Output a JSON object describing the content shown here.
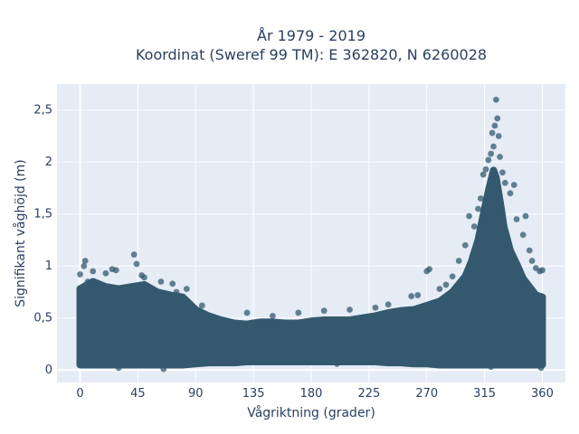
{
  "chart_data": {
    "type": "scatter",
    "title_line1": "År 1979 - 2019",
    "title_line2": "Koordinat (Sweref 99 TM): E 362820, N 6260028",
    "xlabel": "Vågriktning (grader)",
    "ylabel": "Signifikant våghöjd (m)",
    "xlim": [
      -18,
      378
    ],
    "ylim": [
      -0.12,
      2.75
    ],
    "x_ticks": [
      0,
      45,
      90,
      135,
      180,
      225,
      270,
      315,
      360
    ],
    "x_tick_labels": [
      "0",
      "45",
      "90",
      "135",
      "180",
      "225",
      "270",
      "315",
      "360"
    ],
    "y_ticks": [
      0,
      0.5,
      1,
      1.5,
      2,
      2.5
    ],
    "y_tick_labels": [
      "0",
      "0,5",
      "1",
      "1,5",
      "2",
      "2,5"
    ],
    "grid": true,
    "marker_color": "#34596f",
    "plot_bg": "#e5ecf6",
    "series": [
      {
        "points": [
          [
            0,
            0.05
          ],
          [
            0,
            0.92
          ],
          [
            3,
            1.0
          ],
          [
            4,
            1.05
          ],
          [
            6,
            0.85
          ],
          [
            10,
            0.95
          ],
          [
            20,
            0.93
          ],
          [
            25,
            0.97
          ],
          [
            28,
            0.96
          ],
          [
            42,
            1.11
          ],
          [
            44,
            1.02
          ],
          [
            48,
            0.91
          ],
          [
            50,
            0.89
          ],
          [
            63,
            0.85
          ],
          [
            72,
            0.83
          ],
          [
            75,
            0.75
          ],
          [
            83,
            0.78
          ],
          [
            95,
            0.62
          ],
          [
            130,
            0.55
          ],
          [
            150,
            0.52
          ],
          [
            170,
            0.55
          ],
          [
            190,
            0.57
          ],
          [
            210,
            0.58
          ],
          [
            230,
            0.6
          ],
          [
            240,
            0.63
          ],
          [
            258,
            0.71
          ],
          [
            263,
            0.72
          ],
          [
            270,
            0.95
          ],
          [
            272,
            0.97
          ],
          [
            280,
            0.78
          ],
          [
            285,
            0.82
          ],
          [
            290,
            0.9
          ],
          [
            295,
            1.05
          ],
          [
            300,
            1.2
          ],
          [
            303,
            1.48
          ],
          [
            307,
            1.38
          ],
          [
            310,
            1.55
          ],
          [
            312,
            1.65
          ],
          [
            314,
            1.88
          ],
          [
            316,
            1.93
          ],
          [
            318,
            2.02
          ],
          [
            320,
            2.08
          ],
          [
            321,
            2.28
          ],
          [
            322,
            2.15
          ],
          [
            323,
            2.35
          ],
          [
            324,
            2.6
          ],
          [
            325,
            2.42
          ],
          [
            326,
            2.25
          ],
          [
            327,
            2.05
          ],
          [
            329,
            1.9
          ],
          [
            331,
            1.8
          ],
          [
            335,
            1.7
          ],
          [
            338,
            1.78
          ],
          [
            340,
            1.45
          ],
          [
            345,
            1.3
          ],
          [
            347,
            1.48
          ],
          [
            350,
            1.15
          ],
          [
            352,
            1.05
          ],
          [
            355,
            0.98
          ],
          [
            358,
            0.95
          ],
          [
            360,
            0.96
          ],
          [
            359,
            0.02
          ],
          [
            65,
            0.01
          ],
          [
            30,
            0.02
          ],
          [
            200,
            0.06
          ],
          [
            320,
            0.03
          ]
        ]
      }
    ],
    "envelope": {
      "x": [
        0,
        10,
        20,
        30,
        40,
        50,
        60,
        70,
        80,
        90,
        100,
        110,
        120,
        130,
        140,
        150,
        160,
        170,
        180,
        190,
        200,
        210,
        220,
        230,
        240,
        250,
        260,
        270,
        280,
        290,
        300,
        305,
        310,
        315,
        318,
        320,
        322,
        324,
        326,
        328,
        330,
        335,
        340,
        345,
        350,
        355,
        360
      ],
      "y_low": [
        0.05,
        0.05,
        0.05,
        0.05,
        0.05,
        0.05,
        0.05,
        0.05,
        0.05,
        0.06,
        0.07,
        0.07,
        0.07,
        0.08,
        0.08,
        0.08,
        0.08,
        0.08,
        0.08,
        0.08,
        0.08,
        0.08,
        0.08,
        0.08,
        0.07,
        0.07,
        0.06,
        0.06,
        0.05,
        0.05,
        0.05,
        0.05,
        0.05,
        0.05,
        0.05,
        0.05,
        0.05,
        0.05,
        0.05,
        0.05,
        0.05,
        0.05,
        0.05,
        0.05,
        0.05,
        0.05,
        0.05
      ],
      "y_high": [
        0.78,
        0.85,
        0.8,
        0.78,
        0.8,
        0.82,
        0.75,
        0.72,
        0.7,
        0.58,
        0.52,
        0.48,
        0.45,
        0.44,
        0.46,
        0.46,
        0.45,
        0.45,
        0.47,
        0.48,
        0.48,
        0.48,
        0.5,
        0.52,
        0.55,
        0.57,
        0.58,
        0.62,
        0.66,
        0.75,
        0.9,
        1.05,
        1.25,
        1.55,
        1.72,
        1.82,
        1.92,
        1.85,
        1.7,
        1.55,
        1.38,
        1.15,
        1.02,
        0.88,
        0.8,
        0.72,
        0.7
      ]
    }
  }
}
